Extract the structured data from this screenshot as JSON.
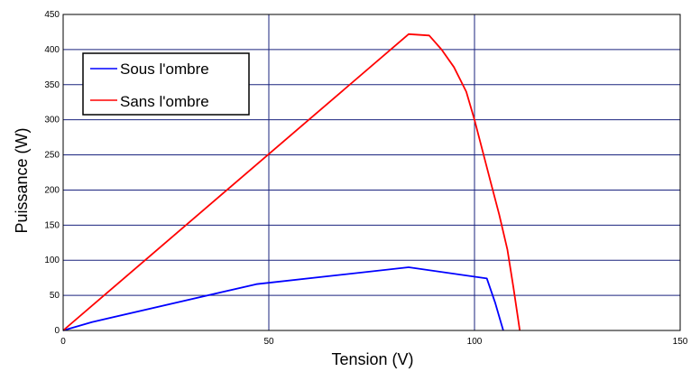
{
  "chart_data": {
    "type": "line",
    "title": "",
    "xlabel": "Tension  (V)",
    "ylabel": "Puissance  (W)",
    "xlim": [
      0,
      150
    ],
    "ylim": [
      0,
      450
    ],
    "xticks": [
      "0",
      "50",
      "100",
      "150"
    ],
    "yticks": [
      "0",
      "50",
      "100",
      "150",
      "200",
      "250",
      "300",
      "350",
      "400",
      "450"
    ],
    "grid": true,
    "legend_position": "top-left",
    "series": [
      {
        "name": "Sous l'ombre",
        "color": "#0000ff",
        "points": [
          [
            0,
            0
          ],
          [
            7,
            12
          ],
          [
            47,
            66
          ],
          [
            84,
            90
          ],
          [
            103,
            74
          ],
          [
            105,
            40
          ],
          [
            106.5,
            10
          ],
          [
            107,
            0
          ]
        ]
      },
      {
        "name": "Sans l'ombre",
        "color": "#ff0000",
        "points": [
          [
            0,
            0
          ],
          [
            84,
            422
          ],
          [
            89,
            420
          ],
          [
            92,
            400
          ],
          [
            95,
            375
          ],
          [
            98,
            340
          ],
          [
            100,
            300
          ],
          [
            102,
            255
          ],
          [
            104,
            210
          ],
          [
            106,
            165
          ],
          [
            108,
            115
          ],
          [
            109.5,
            60
          ],
          [
            110.5,
            20
          ],
          [
            111,
            0
          ]
        ]
      }
    ]
  }
}
